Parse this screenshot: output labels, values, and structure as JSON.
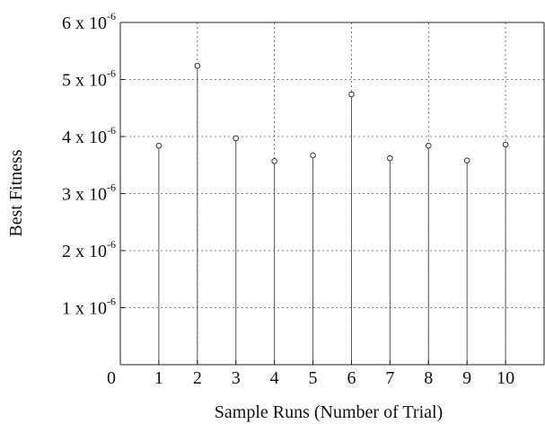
{
  "chart_data": {
    "type": "stem",
    "title": "",
    "xlabel": "Sample Runs (Number of Trial)",
    "ylabel": "Best Fitness",
    "xlim": [
      0,
      11
    ],
    "ylim": [
      0,
      6e-06
    ],
    "grid": true,
    "x": [
      1,
      2,
      3,
      4,
      5,
      6,
      7,
      8,
      9,
      10
    ],
    "y": [
      3.84e-06,
      5.24e-06,
      3.97e-06,
      3.57e-06,
      3.67e-06,
      4.74e-06,
      3.62e-06,
      3.84e-06,
      3.58e-06,
      3.86e-06
    ],
    "x_ticks": [
      "1",
      "2",
      "3",
      "4",
      "5",
      "6",
      "7",
      "8",
      "9",
      "10"
    ],
    "origin_label": "0",
    "y_ticks": [
      {
        "value": 1e-06,
        "mantissa": "1 x 10",
        "exponent": "-6"
      },
      {
        "value": 2e-06,
        "mantissa": "2 x 10",
        "exponent": "-6"
      },
      {
        "value": 3e-06,
        "mantissa": "3 x 10",
        "exponent": "-6"
      },
      {
        "value": 4e-06,
        "mantissa": "4 x 10",
        "exponent": "-6"
      },
      {
        "value": 5e-06,
        "mantissa": "5 x 10",
        "exponent": "-6"
      },
      {
        "value": 6e-06,
        "mantissa": "6 x 10",
        "exponent": "-6"
      }
    ],
    "colors": {
      "stem": "#555555",
      "marker": "#333333",
      "axis": "#222222",
      "grid": "#555555"
    }
  }
}
